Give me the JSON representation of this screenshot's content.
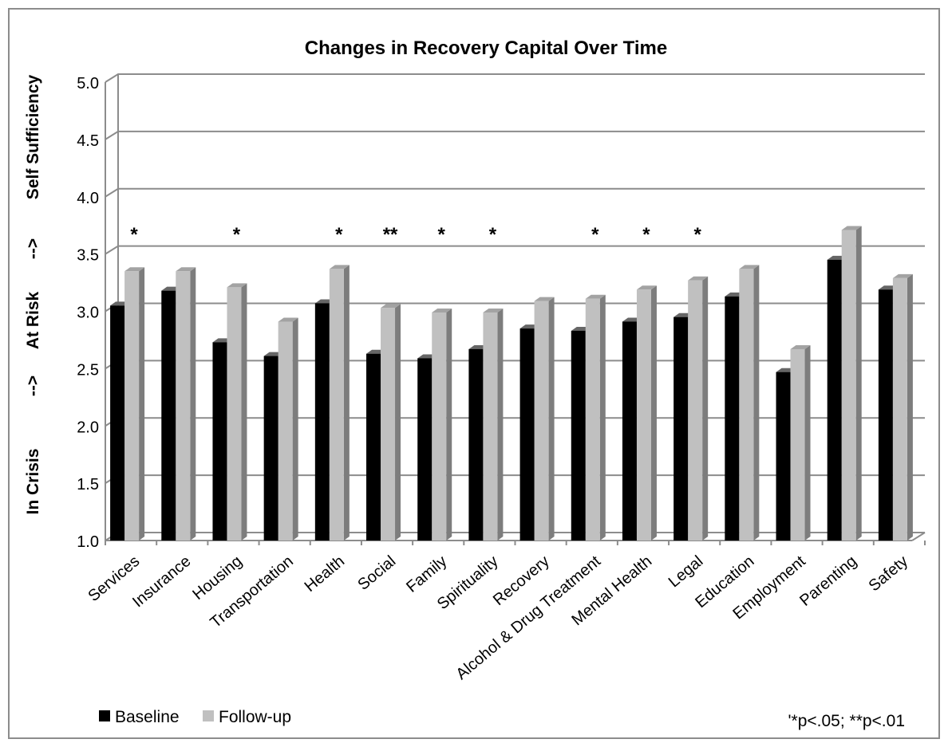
{
  "chart_data": {
    "type": "bar",
    "title": "Changes in Recovery Capital Over Time",
    "ylabel_segments": [
      "In Crisis",
      "-->",
      "At Risk",
      "-->",
      "Self Sufficiency"
    ],
    "ylim": [
      1.0,
      5.0
    ],
    "yticks": [
      "1.0",
      "1.5",
      "2.0",
      "2.5",
      "3.0",
      "3.5",
      "4.0",
      "4.5",
      "5.0"
    ],
    "grid": true,
    "legend_position": "bottom-left",
    "footnote": "'*p<.05; **p<.01",
    "categories": [
      "Services",
      "Insurance",
      "Housing",
      "Transportation",
      "Health",
      "Social",
      "Family",
      "Spirituality",
      "Recovery",
      "Alcohol & Drug Treatment",
      "Mental Health",
      "Legal",
      "Education",
      "Employment",
      "Parenting",
      "Safety"
    ],
    "significance": [
      "*",
      "",
      "*",
      "",
      "*",
      "**",
      "*",
      "*",
      "",
      "*",
      "*",
      "*",
      "",
      "",
      "",
      ""
    ],
    "series": [
      {
        "name": "Baseline",
        "color": "#000000",
        "values": [
          3.05,
          3.18,
          2.73,
          2.61,
          3.07,
          2.63,
          2.59,
          2.67,
          2.85,
          2.83,
          2.91,
          2.95,
          3.13,
          2.47,
          3.45,
          3.19
        ]
      },
      {
        "name": "Follow-up",
        "color": "#c0c0c0",
        "values": [
          3.35,
          3.35,
          3.21,
          2.91,
          3.37,
          3.03,
          2.99,
          2.99,
          3.09,
          3.11,
          3.19,
          3.27,
          3.37,
          2.67,
          3.71,
          3.29
        ]
      }
    ]
  }
}
